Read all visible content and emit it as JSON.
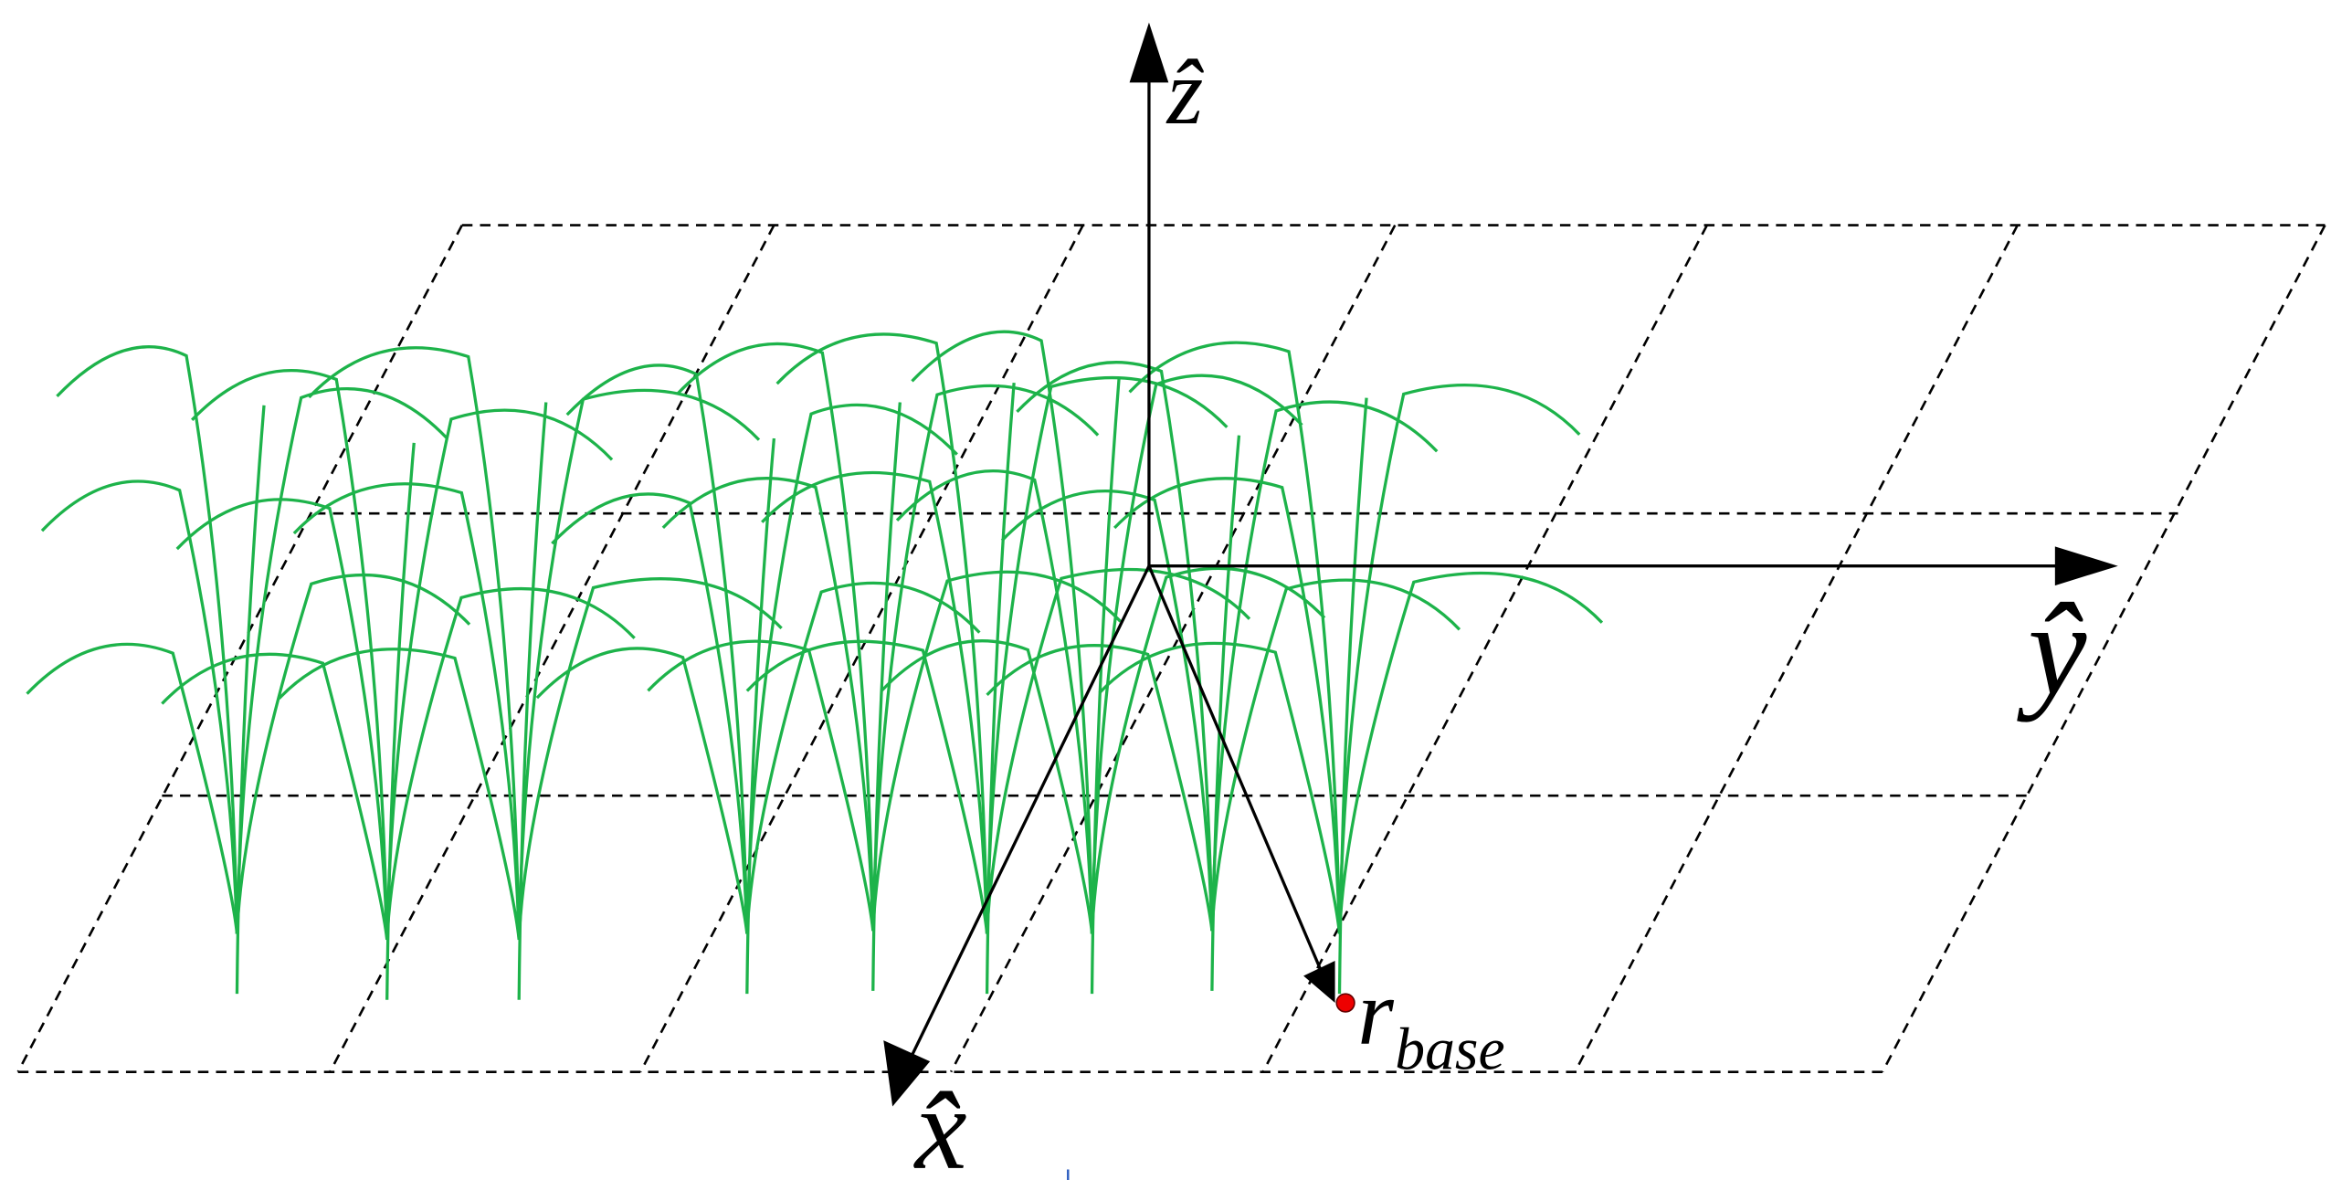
{
  "labels": {
    "z_axis": "ẑ",
    "y_axis": "ŷ",
    "x_axis": "x̂",
    "r_base": {
      "symbol": "r⃗",
      "subscript": "base"
    }
  }
}
